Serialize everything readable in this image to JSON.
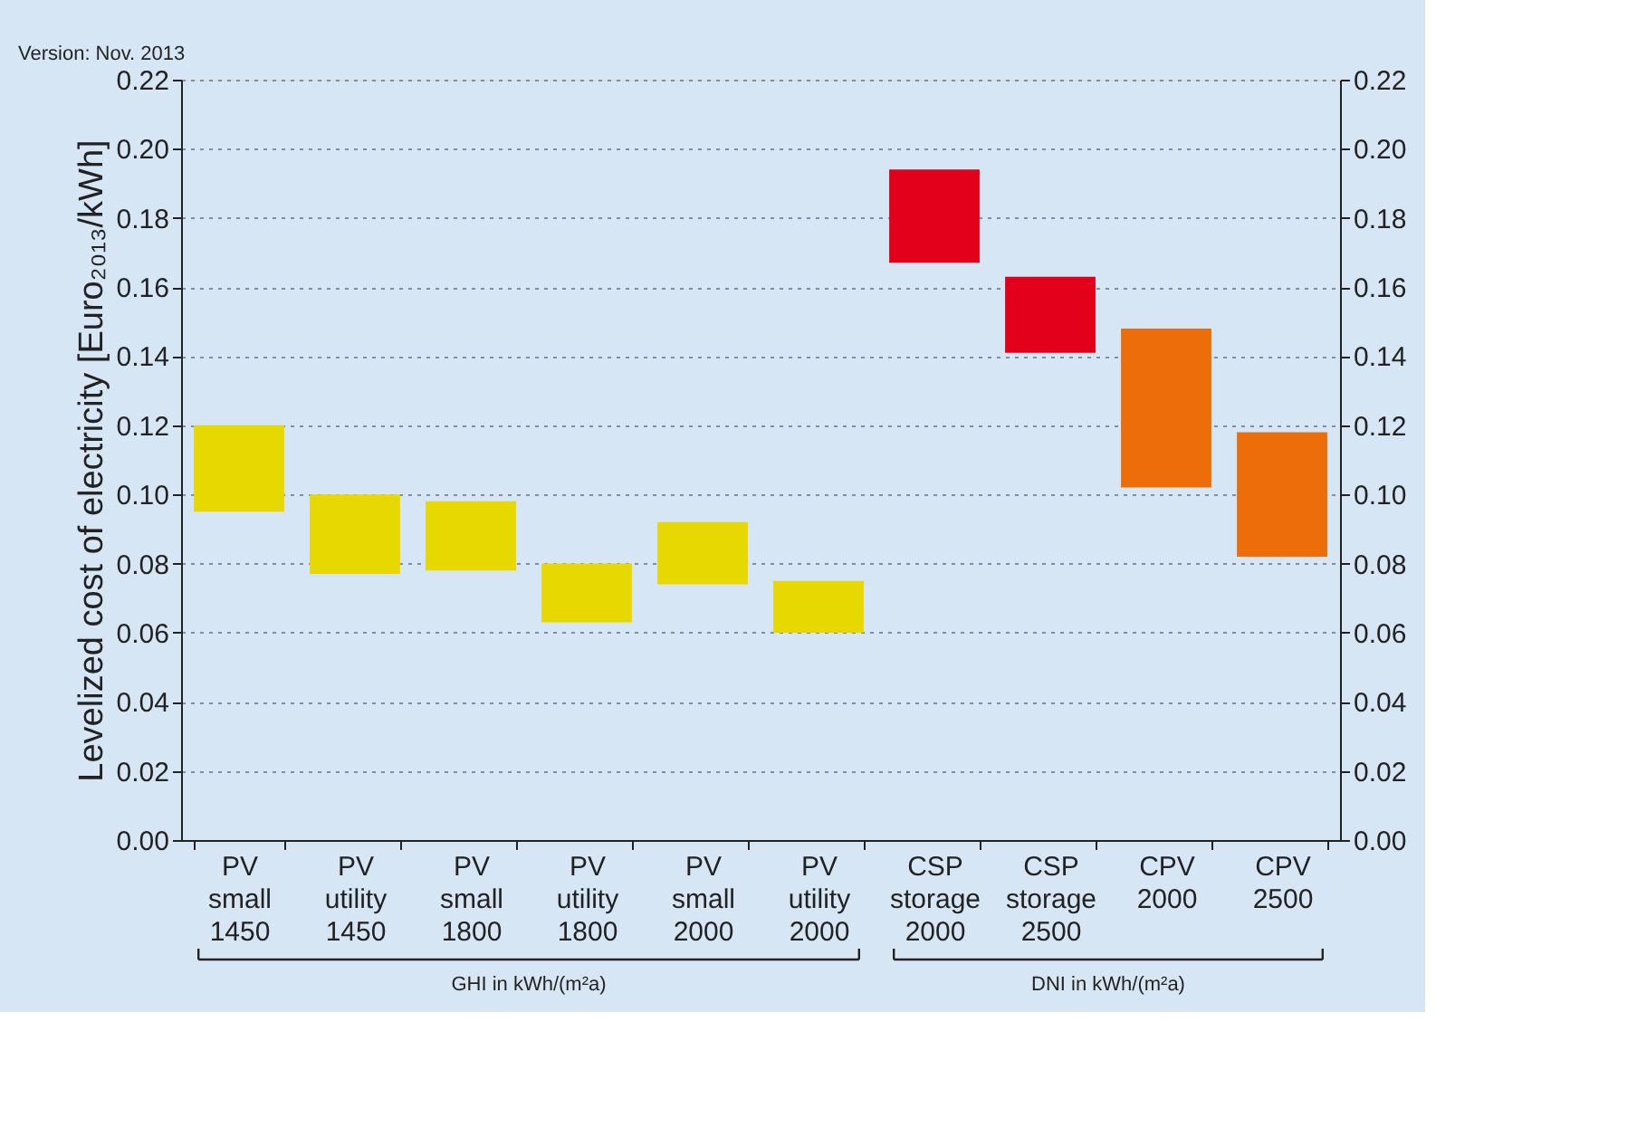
{
  "chart_data": {
    "type": "bar",
    "categories": [
      "PV\nsmall\n1450",
      "PV\nutility\n1450",
      "PV\nsmall\n1800",
      "PV\nutility\n1800",
      "PV\nsmall\n2000",
      "PV\nutility\n2000",
      "CSP\nstorage\n2000",
      "CSP\nstorage\n2500",
      "CPV\n2000",
      "CPV\n2500"
    ],
    "base": [
      0.095,
      0.077,
      0.078,
      0.063,
      0.074,
      0.06,
      0.167,
      0.141,
      0.102,
      0.082
    ],
    "values": [
      0.025,
      0.023,
      0.02,
      0.017,
      0.018,
      0.015,
      0.027,
      0.022,
      0.046,
      0.036
    ],
    "colors": [
      "#e6d800",
      "#e6d800",
      "#e6d800",
      "#e6d800",
      "#e6d800",
      "#e6d800",
      "#e2001a",
      "#e2001a",
      "#ec6d0a",
      "#ec6d0a"
    ],
    "ylabel": "Levelized cost of electricity [Euro₂₀₁₃/kWh]",
    "ylim": [
      0,
      0.22
    ],
    "yticks": [
      {
        "value": 0,
        "label": "0.00"
      },
      {
        "value": 0.02,
        "label": "0.02"
      },
      {
        "value": 0.04,
        "label": "0.04"
      },
      {
        "value": 0.06,
        "label": "0.06"
      },
      {
        "value": 0.08,
        "label": "0.08"
      },
      {
        "value": 0.1,
        "label": "0.10"
      },
      {
        "value": 0.12,
        "label": "0.12"
      },
      {
        "value": 0.14,
        "label": "0.14"
      },
      {
        "value": 0.16,
        "label": "0.16"
      },
      {
        "value": 0.18,
        "label": "0.18"
      },
      {
        "value": 0.2,
        "label": "0.20"
      },
      {
        "value": 0.22,
        "label": "0.22"
      }
    ],
    "y2lim": [
      0,
      0.22
    ],
    "y2ticks": [
      {
        "value": 0,
        "label": "0.00"
      },
      {
        "value": 0.02,
        "label": "0.02"
      },
      {
        "value": 0.04,
        "label": "0.04"
      },
      {
        "value": 0.06,
        "label": "0.06"
      },
      {
        "value": 0.08,
        "label": "0.08"
      },
      {
        "value": 0.1,
        "label": "0.10"
      },
      {
        "value": 0.12,
        "label": "0.12"
      },
      {
        "value": 0.14,
        "label": "0.14"
      },
      {
        "value": 0.16,
        "label": "0.16"
      },
      {
        "value": 0.18,
        "label": "0.18"
      },
      {
        "value": 0.2,
        "label": "0.20"
      },
      {
        "value": 0.22,
        "label": "0.22"
      }
    ],
    "grid": "y",
    "annotations": [
      "Version: Nov. 2013",
      "GHI in kWh/(m²a)",
      "DNI in kWh/(m²a)"
    ]
  }
}
